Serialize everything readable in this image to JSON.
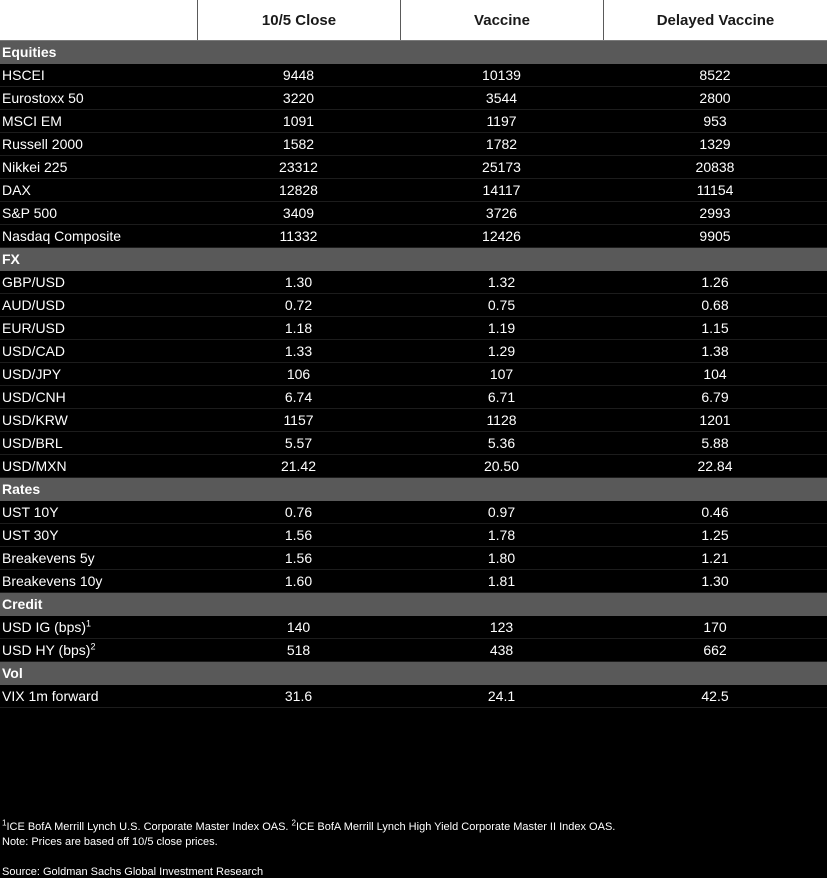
{
  "header": {
    "col0": "",
    "col1": "10/5 Close",
    "col2": "Vaccine",
    "col3": "Delayed Vaccine"
  },
  "equities": {
    "title": "Equities",
    "rows": [
      {
        "name": "HSCEI",
        "close": "9448",
        "vaccine": "10139",
        "delayed": "8522"
      },
      {
        "name": "Eurostoxx 50",
        "close": "3220",
        "vaccine": "3544",
        "delayed": "2800"
      },
      {
        "name": "MSCI EM",
        "close": "1091",
        "vaccine": "1197",
        "delayed": "953"
      },
      {
        "name": "Russell 2000",
        "close": "1582",
        "vaccine": "1782",
        "delayed": "1329"
      },
      {
        "name": "Nikkei 225",
        "close": "23312",
        "vaccine": "25173",
        "delayed": "20838"
      },
      {
        "name": "DAX",
        "close": "12828",
        "vaccine": "14117",
        "delayed": "11154"
      },
      {
        "name": "S&P 500",
        "close": "3409",
        "vaccine": "3726",
        "delayed": "2993"
      },
      {
        "name": "Nasdaq Composite",
        "close": "11332",
        "vaccine": "12426",
        "delayed": "9905"
      }
    ]
  },
  "fx": {
    "title": "FX",
    "rows": [
      {
        "name": "GBP/USD",
        "close": "1.30",
        "vaccine": "1.32",
        "delayed": "1.26"
      },
      {
        "name": "AUD/USD",
        "close": "0.72",
        "vaccine": "0.75",
        "delayed": "0.68"
      },
      {
        "name": "EUR/USD",
        "close": "1.18",
        "vaccine": "1.19",
        "delayed": "1.15"
      },
      {
        "name": "USD/CAD",
        "close": "1.33",
        "vaccine": "1.29",
        "delayed": "1.38"
      },
      {
        "name": "USD/JPY",
        "close": "106",
        "vaccine": "107",
        "delayed": "104"
      },
      {
        "name": "USD/CNH",
        "close": "6.74",
        "vaccine": "6.71",
        "delayed": "6.79"
      },
      {
        "name": "USD/KRW",
        "close": "1157",
        "vaccine": "1128",
        "delayed": "1201"
      },
      {
        "name": "USD/BRL",
        "close": "5.57",
        "vaccine": "5.36",
        "delayed": "5.88"
      },
      {
        "name": "USD/MXN",
        "close": "21.42",
        "vaccine": "20.50",
        "delayed": "22.84"
      }
    ]
  },
  "rates": {
    "title": "Rates",
    "rows": [
      {
        "name": "UST 10Y",
        "close": "0.76",
        "vaccine": "0.97",
        "delayed": "0.46"
      },
      {
        "name": "UST 30Y",
        "close": "1.56",
        "vaccine": "1.78",
        "delayed": "1.25"
      },
      {
        "name": "Breakevens 5y",
        "close": "1.56",
        "vaccine": "1.80",
        "delayed": "1.21"
      },
      {
        "name": "Breakevens 10y",
        "close": "1.60",
        "vaccine": "1.81",
        "delayed": "1.30"
      }
    ]
  },
  "credit": {
    "title": "Credit",
    "rows": [
      {
        "name": "USD IG (bps)",
        "sup": "1",
        "close": "140",
        "vaccine": "123",
        "delayed": "170"
      },
      {
        "name": "USD HY (bps)",
        "sup": "2",
        "close": "518",
        "vaccine": "438",
        "delayed": "662"
      }
    ]
  },
  "vol": {
    "title": "Vol",
    "rows": [
      {
        "name": "VIX 1m forward",
        "close": "31.6",
        "vaccine": "24.1",
        "delayed": "42.5"
      }
    ]
  },
  "footnote": {
    "sup1": "1",
    "text1": "ICE BofA Merrill Lynch U.S. Corporate Master Index OAS. ",
    "sup2": "2",
    "text2": "ICE BofA Merrill Lynch High Yield Corporate Master II Index OAS.",
    "note": "Note: Prices are based off 10/5 close prices."
  },
  "source": "Source: Goldman Sachs Global Investment Research"
}
